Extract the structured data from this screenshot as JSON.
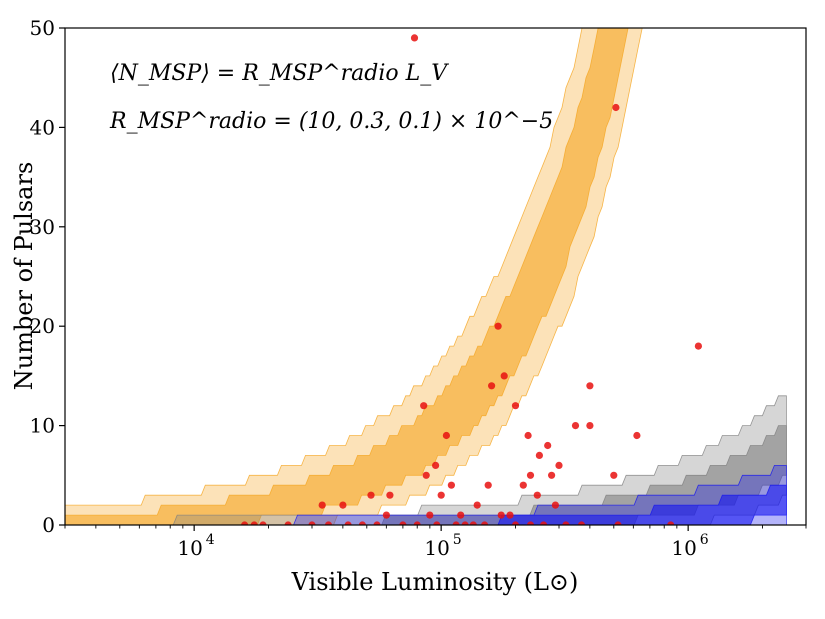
{
  "chart_data": {
    "type": "scatter",
    "xlabel": "Visible Luminosity  (L⊙)",
    "ylabel": "Number of Pulsars",
    "xscale": "log",
    "xlim": [
      3000,
      3000000
    ],
    "ylim": [
      0,
      50
    ],
    "xticks": [
      {
        "value": 10000,
        "base": "10",
        "exp": "4"
      },
      {
        "value": 100000,
        "base": "10",
        "exp": "5"
      },
      {
        "value": 1000000,
        "base": "10",
        "exp": "6"
      }
    ],
    "yticks": [
      0,
      10,
      20,
      30,
      40,
      50
    ],
    "annotations": [
      "⟨N_MSP⟩ = R_MSP^radio L_V",
      "R_MSP^radio = (10, 0.3, 0.1) × 10^−5"
    ],
    "bands": [
      {
        "name": "R = 10e-5",
        "rate": 0.0001,
        "color": "#f5a623"
      },
      {
        "name": "R = 0.3e-5",
        "rate": 3e-06,
        "color": "#808080"
      },
      {
        "name": "R = 0.1e-5",
        "rate": 1e-06,
        "color": "#1515f0"
      }
    ],
    "points": [
      {
        "x": 78000,
        "y": 49
      },
      {
        "x": 510000,
        "y": 42
      },
      {
        "x": 170000,
        "y": 20
      },
      {
        "x": 1100000,
        "y": 18
      },
      {
        "x": 180000,
        "y": 15
      },
      {
        "x": 160000,
        "y": 14
      },
      {
        "x": 400000,
        "y": 14
      },
      {
        "x": 85000,
        "y": 12
      },
      {
        "x": 200000,
        "y": 12
      },
      {
        "x": 105000,
        "y": 9
      },
      {
        "x": 225000,
        "y": 9
      },
      {
        "x": 620000,
        "y": 9
      },
      {
        "x": 350000,
        "y": 10
      },
      {
        "x": 400000,
        "y": 10
      },
      {
        "x": 270000,
        "y": 8
      },
      {
        "x": 250000,
        "y": 7
      },
      {
        "x": 95000,
        "y": 6
      },
      {
        "x": 300000,
        "y": 6
      },
      {
        "x": 87000,
        "y": 5
      },
      {
        "x": 230000,
        "y": 5
      },
      {
        "x": 280000,
        "y": 5
      },
      {
        "x": 500000,
        "y": 5
      },
      {
        "x": 110000,
        "y": 4
      },
      {
        "x": 155000,
        "y": 4
      },
      {
        "x": 215000,
        "y": 4
      },
      {
        "x": 52000,
        "y": 3
      },
      {
        "x": 62000,
        "y": 3
      },
      {
        "x": 100000,
        "y": 3
      },
      {
        "x": 245000,
        "y": 3
      },
      {
        "x": 33000,
        "y": 2
      },
      {
        "x": 40000,
        "y": 2
      },
      {
        "x": 140000,
        "y": 2
      },
      {
        "x": 290000,
        "y": 2
      },
      {
        "x": 60000,
        "y": 1
      },
      {
        "x": 90000,
        "y": 1
      },
      {
        "x": 120000,
        "y": 1
      },
      {
        "x": 175000,
        "y": 1
      },
      {
        "x": 190000,
        "y": 1
      },
      {
        "x": 16000,
        "y": 0
      },
      {
        "x": 17500,
        "y": 0
      },
      {
        "x": 19000,
        "y": 0
      },
      {
        "x": 24000,
        "y": 0
      },
      {
        "x": 30000,
        "y": 0
      },
      {
        "x": 35000,
        "y": 0
      },
      {
        "x": 42000,
        "y": 0
      },
      {
        "x": 48000,
        "y": 0
      },
      {
        "x": 55000,
        "y": 0
      },
      {
        "x": 70000,
        "y": 0
      },
      {
        "x": 80000,
        "y": 0
      },
      {
        "x": 96000,
        "y": 0
      },
      {
        "x": 115000,
        "y": 0
      },
      {
        "x": 125000,
        "y": 0
      },
      {
        "x": 135000,
        "y": 0
      },
      {
        "x": 150000,
        "y": 0
      },
      {
        "x": 200000,
        "y": 0
      },
      {
        "x": 230000,
        "y": 0
      },
      {
        "x": 260000,
        "y": 0
      },
      {
        "x": 320000,
        "y": 0
      },
      {
        "x": 370000,
        "y": 0
      },
      {
        "x": 520000,
        "y": 0
      },
      {
        "x": 850000,
        "y": 0
      }
    ]
  }
}
